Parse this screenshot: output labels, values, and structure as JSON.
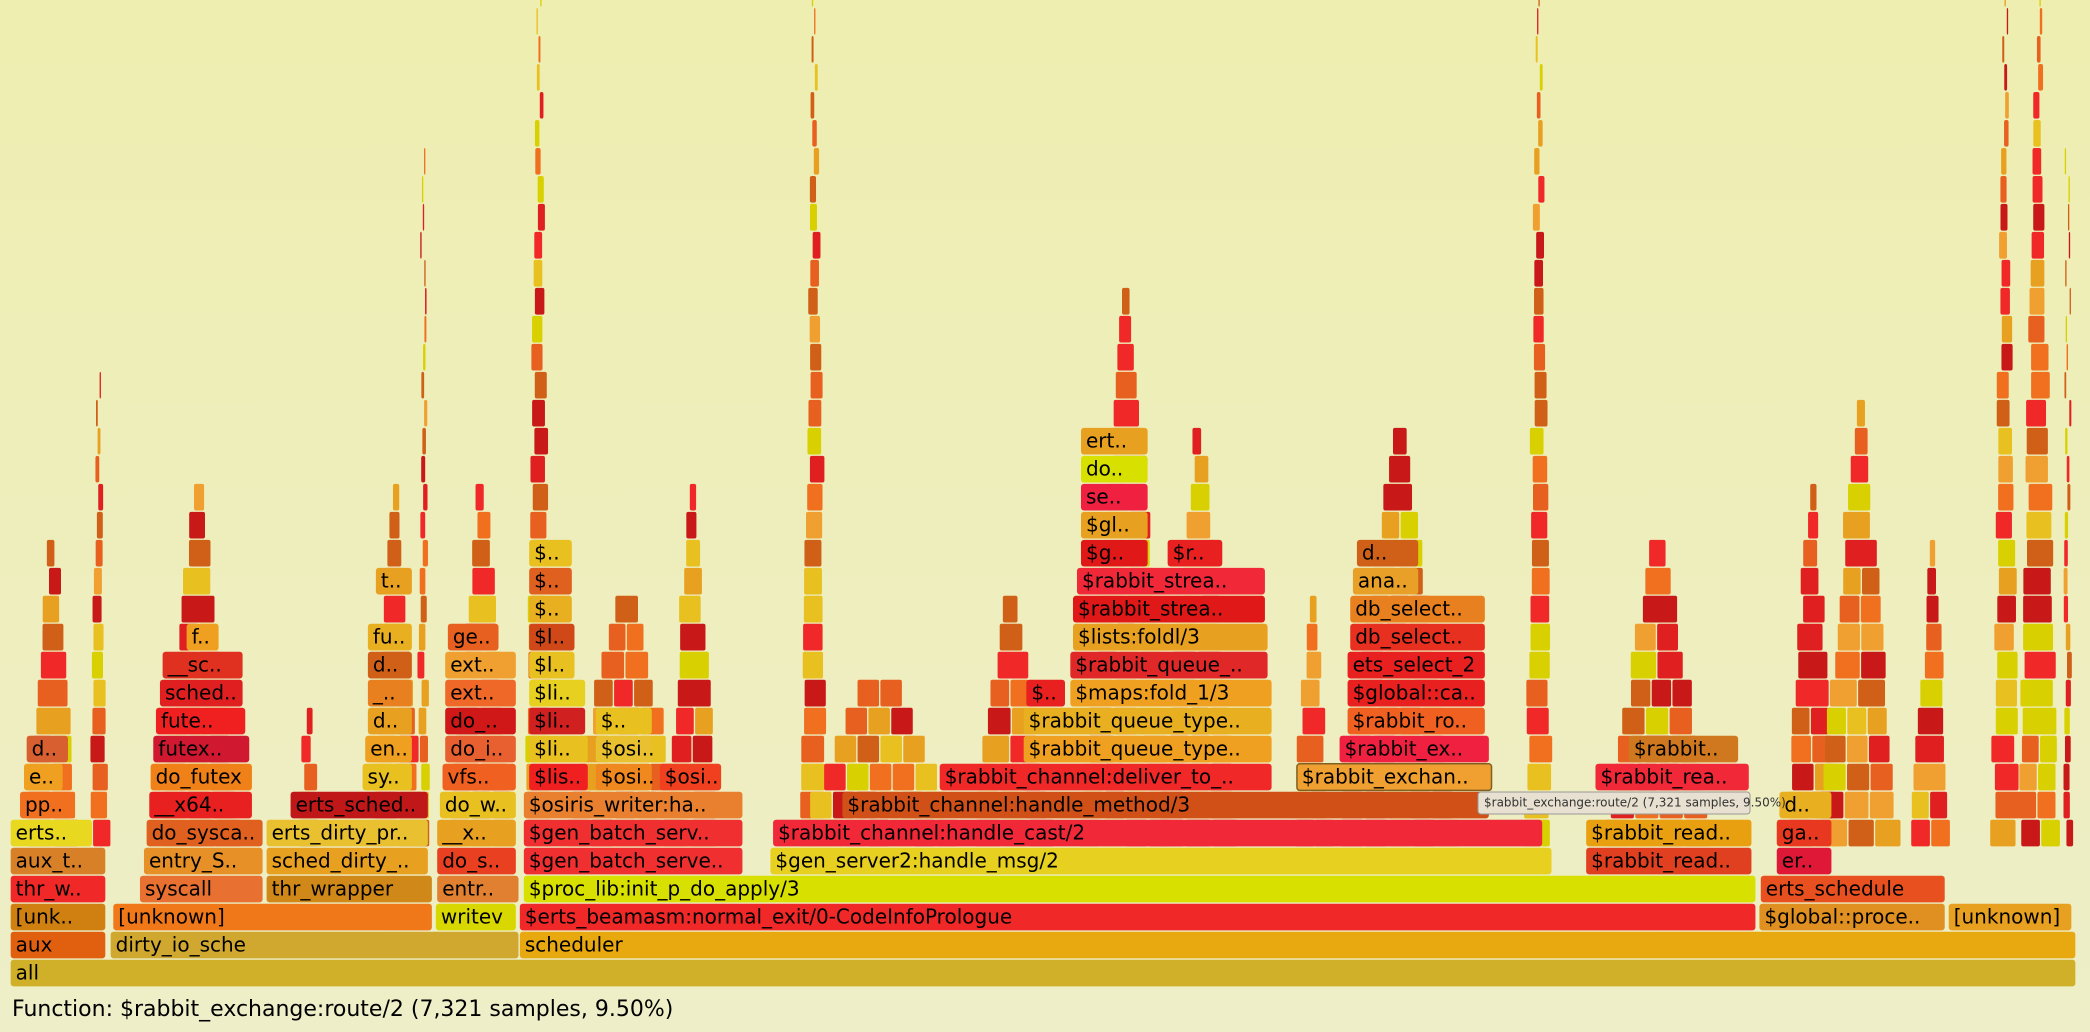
{
  "frames": [
    "all",
    "aux",
    "dirty_io_sche",
    "scheduler",
    "[unk..",
    "[unknown]",
    "writev",
    "$erts_beamasm:normal_exit/0-CodeInfoPrologue",
    "$global::proce..",
    "[unknown]",
    "thr_w..",
    "syscall",
    "thr_wrapper",
    "entr..",
    "$proc_lib:init_p_do_apply/3",
    "erts_schedule",
    "aux_t..",
    "entry_S..",
    "sched_dirty_..",
    "do_s..",
    "$gen_batch_serve..",
    "$gen_server2:handle_msg/2",
    "$rabbit_read..",
    "er..",
    "erts..",
    "do_sysca..",
    "erts_dirty_pr..",
    "__x..",
    "$gen_batch_serv..",
    "$rabbit_channel:handle_cast/2",
    "$rabbit_read..",
    "ga..",
    "pp..",
    "__x64..",
    "erts_sched..",
    "do_w..",
    "$osiris_writer:ha..",
    "$rabbit_channel:handle_method/3",
    "d..",
    "e..",
    "do_futex",
    "sy..",
    "vfs..",
    "$lis..",
    "$osi..",
    "$osi..",
    "$rabbit_channel:deliver_to_..",
    "$rabbit_exchan..",
    "$rabbit_rea..",
    "d..",
    "futex..",
    "en..",
    "do_i..",
    "$li..",
    "$osi..",
    "$rabbit_queue_type..",
    "$rabbit_ex..",
    "$rabbit..",
    "fute..",
    "d..",
    "do_..",
    "$li..",
    "$..",
    "$rabbit_queue_type..",
    "$rabbit_ro..",
    "sched..",
    "_..",
    "ext..",
    "$li..",
    "$..",
    "$maps:fold_1/3",
    "$global::ca..",
    "__sc..",
    "d..",
    "ext..",
    "$l..",
    "$rabbit_queue_..",
    "ets_select_2",
    "f..",
    "fu..",
    "ge..",
    "$l..",
    "$lists:foldl/3",
    "db_select..",
    "$..",
    "$rabbit_strea..",
    "db_select..",
    "t..",
    "$..",
    "$rabbit_strea..",
    "ana..",
    "$..",
    "$g..",
    "$r..",
    "d..",
    "$gl..",
    "se..",
    "do..",
    "ert.."
  ],
  "tooltip": "$rabbit_exchange:route/2 (7,321 samples, 9.50%)",
  "status": "Function: $rabbit_exchange:route/2 (7,321 samples, 9.50%)"
}
